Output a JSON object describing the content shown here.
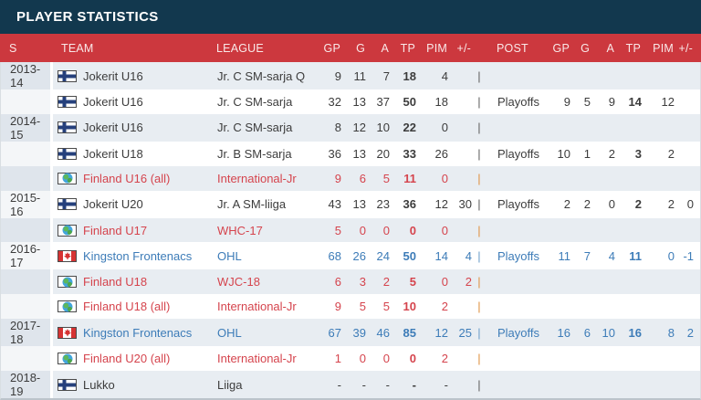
{
  "header": {
    "title": "PLAYER STATISTICS"
  },
  "table": {
    "divider": "|",
    "columns": [
      {
        "key": "season",
        "label": "S"
      },
      {
        "key": "team",
        "label": "TEAM"
      },
      {
        "key": "league",
        "label": "LEAGUE"
      },
      {
        "key": "gp",
        "label": "GP"
      },
      {
        "key": "g",
        "label": "G"
      },
      {
        "key": "a",
        "label": "A"
      },
      {
        "key": "tp",
        "label": "TP"
      },
      {
        "key": "pim",
        "label": "PIM"
      },
      {
        "key": "pm",
        "label": "+/-"
      },
      {
        "key": "div",
        "label": ""
      },
      {
        "key": "post",
        "label": "POST"
      },
      {
        "key": "gp2",
        "label": "GP"
      },
      {
        "key": "g2",
        "label": "G"
      },
      {
        "key": "a2",
        "label": "A"
      },
      {
        "key": "tp2",
        "label": "TP"
      },
      {
        "key": "pim2",
        "label": "PIM"
      },
      {
        "key": "pm2",
        "label": "+/-"
      }
    ],
    "rows": [
      {
        "season": "2013-14",
        "flag": "fi",
        "team": "Jokerit U16",
        "league": "Jr. C SM-sarja Q",
        "style": "normal",
        "gp": "9",
        "g": "11",
        "a": "7",
        "tp": "18",
        "pim": "4",
        "pm": "",
        "post": "",
        "gp2": "",
        "g2": "",
        "a2": "",
        "tp2": "",
        "pim2": "",
        "pm2": ""
      },
      {
        "season": "",
        "flag": "fi",
        "team": "Jokerit U16",
        "league": "Jr. C SM-sarja",
        "style": "normal",
        "gp": "32",
        "g": "13",
        "a": "37",
        "tp": "50",
        "pim": "18",
        "pm": "",
        "post": "Playoffs",
        "gp2": "9",
        "g2": "5",
        "a2": "9",
        "tp2": "14",
        "pim2": "12",
        "pm2": ""
      },
      {
        "season": "2014-15",
        "flag": "fi",
        "team": "Jokerit U16",
        "league": "Jr. C SM-sarja",
        "style": "normal",
        "gp": "8",
        "g": "12",
        "a": "10",
        "tp": "22",
        "pim": "0",
        "pm": "",
        "post": "",
        "gp2": "",
        "g2": "",
        "a2": "",
        "tp2": "",
        "pim2": "",
        "pm2": ""
      },
      {
        "season": "",
        "flag": "fi",
        "team": "Jokerit U18",
        "league": "Jr. B SM-sarja",
        "style": "normal",
        "gp": "36",
        "g": "13",
        "a": "20",
        "tp": "33",
        "pim": "26",
        "pm": "",
        "post": "Playoffs",
        "gp2": "10",
        "g2": "1",
        "a2": "2",
        "tp2": "3",
        "pim2": "2",
        "pm2": ""
      },
      {
        "season": "",
        "flag": "globe",
        "team": "Finland U16 (all)",
        "league": "International-Jr",
        "style": "intl",
        "gp": "9",
        "g": "6",
        "a": "5",
        "tp": "11",
        "pim": "0",
        "pm": "",
        "post": "",
        "gp2": "",
        "g2": "",
        "a2": "",
        "tp2": "",
        "pim2": "",
        "pm2": ""
      },
      {
        "season": "2015-16",
        "flag": "fi",
        "team": "Jokerit U20",
        "league": "Jr. A SM-liiga",
        "style": "normal",
        "gp": "43",
        "g": "13",
        "a": "23",
        "tp": "36",
        "pim": "12",
        "pm": "30",
        "post": "Playoffs",
        "gp2": "2",
        "g2": "2",
        "a2": "0",
        "tp2": "2",
        "pim2": "2",
        "pm2": "0"
      },
      {
        "season": "",
        "flag": "globe",
        "team": "Finland U17",
        "league": "WHC-17",
        "style": "intl",
        "gp": "5",
        "g": "0",
        "a": "0",
        "tp": "0",
        "pim": "0",
        "pm": "",
        "post": "",
        "gp2": "",
        "g2": "",
        "a2": "",
        "tp2": "",
        "pim2": "",
        "pm2": ""
      },
      {
        "season": "2016-17",
        "flag": "ca",
        "team": "Kingston Frontenacs",
        "league": "OHL",
        "style": "club",
        "gp": "68",
        "g": "26",
        "a": "24",
        "tp": "50",
        "pim": "14",
        "pm": "4",
        "post": "Playoffs",
        "gp2": "11",
        "g2": "7",
        "a2": "4",
        "tp2": "11",
        "pim2": "0",
        "pm2": "-1"
      },
      {
        "season": "",
        "flag": "globe",
        "team": "Finland U18",
        "league": "WJC-18",
        "style": "intl",
        "gp": "6",
        "g": "3",
        "a": "2",
        "tp": "5",
        "pim": "0",
        "pm": "2",
        "post": "",
        "gp2": "",
        "g2": "",
        "a2": "",
        "tp2": "",
        "pim2": "",
        "pm2": ""
      },
      {
        "season": "",
        "flag": "globe",
        "team": "Finland U18 (all)",
        "league": "International-Jr",
        "style": "intl",
        "gp": "9",
        "g": "5",
        "a": "5",
        "tp": "10",
        "pim": "2",
        "pm": "",
        "post": "",
        "gp2": "",
        "g2": "",
        "a2": "",
        "tp2": "",
        "pim2": "",
        "pm2": ""
      },
      {
        "season": "2017-18",
        "flag": "ca",
        "team": "Kingston Frontenacs",
        "league": "OHL",
        "style": "club",
        "gp": "67",
        "g": "39",
        "a": "46",
        "tp": "85",
        "pim": "12",
        "pm": "25",
        "post": "Playoffs",
        "gp2": "16",
        "g2": "6",
        "a2": "10",
        "tp2": "16",
        "pim2": "8",
        "pm2": "2"
      },
      {
        "season": "",
        "flag": "globe",
        "team": "Finland U20 (all)",
        "league": "International-Jr",
        "style": "intl",
        "gp": "1",
        "g": "0",
        "a": "0",
        "tp": "0",
        "pim": "2",
        "pm": "",
        "post": "",
        "gp2": "",
        "g2": "",
        "a2": "",
        "tp2": "",
        "pim2": "",
        "pm2": ""
      },
      {
        "season": "2018-19",
        "flag": "fi",
        "team": "Lukko",
        "league": "Liiga",
        "style": "normal",
        "gp": "-",
        "g": "-",
        "a": "-",
        "tp": "-",
        "pim": "-",
        "pm": "",
        "post": "",
        "gp2": "",
        "g2": "",
        "a2": "",
        "tp2": "",
        "pim2": "",
        "pm2": ""
      }
    ]
  },
  "colors": {
    "title_bar": "#12384e",
    "header_red": "#cc383e",
    "row_alt": "#e8edf2",
    "season_cell_alt": "#dfe5ec",
    "intl_red": "#d5444d",
    "club_blue": "#3d7cb8",
    "divider_orange": "#e0913f",
    "text": "#3c3c3c"
  },
  "icons": {
    "fi": "finland-flag-icon",
    "ca": "canada-flag-icon",
    "globe": "globe-icon"
  }
}
